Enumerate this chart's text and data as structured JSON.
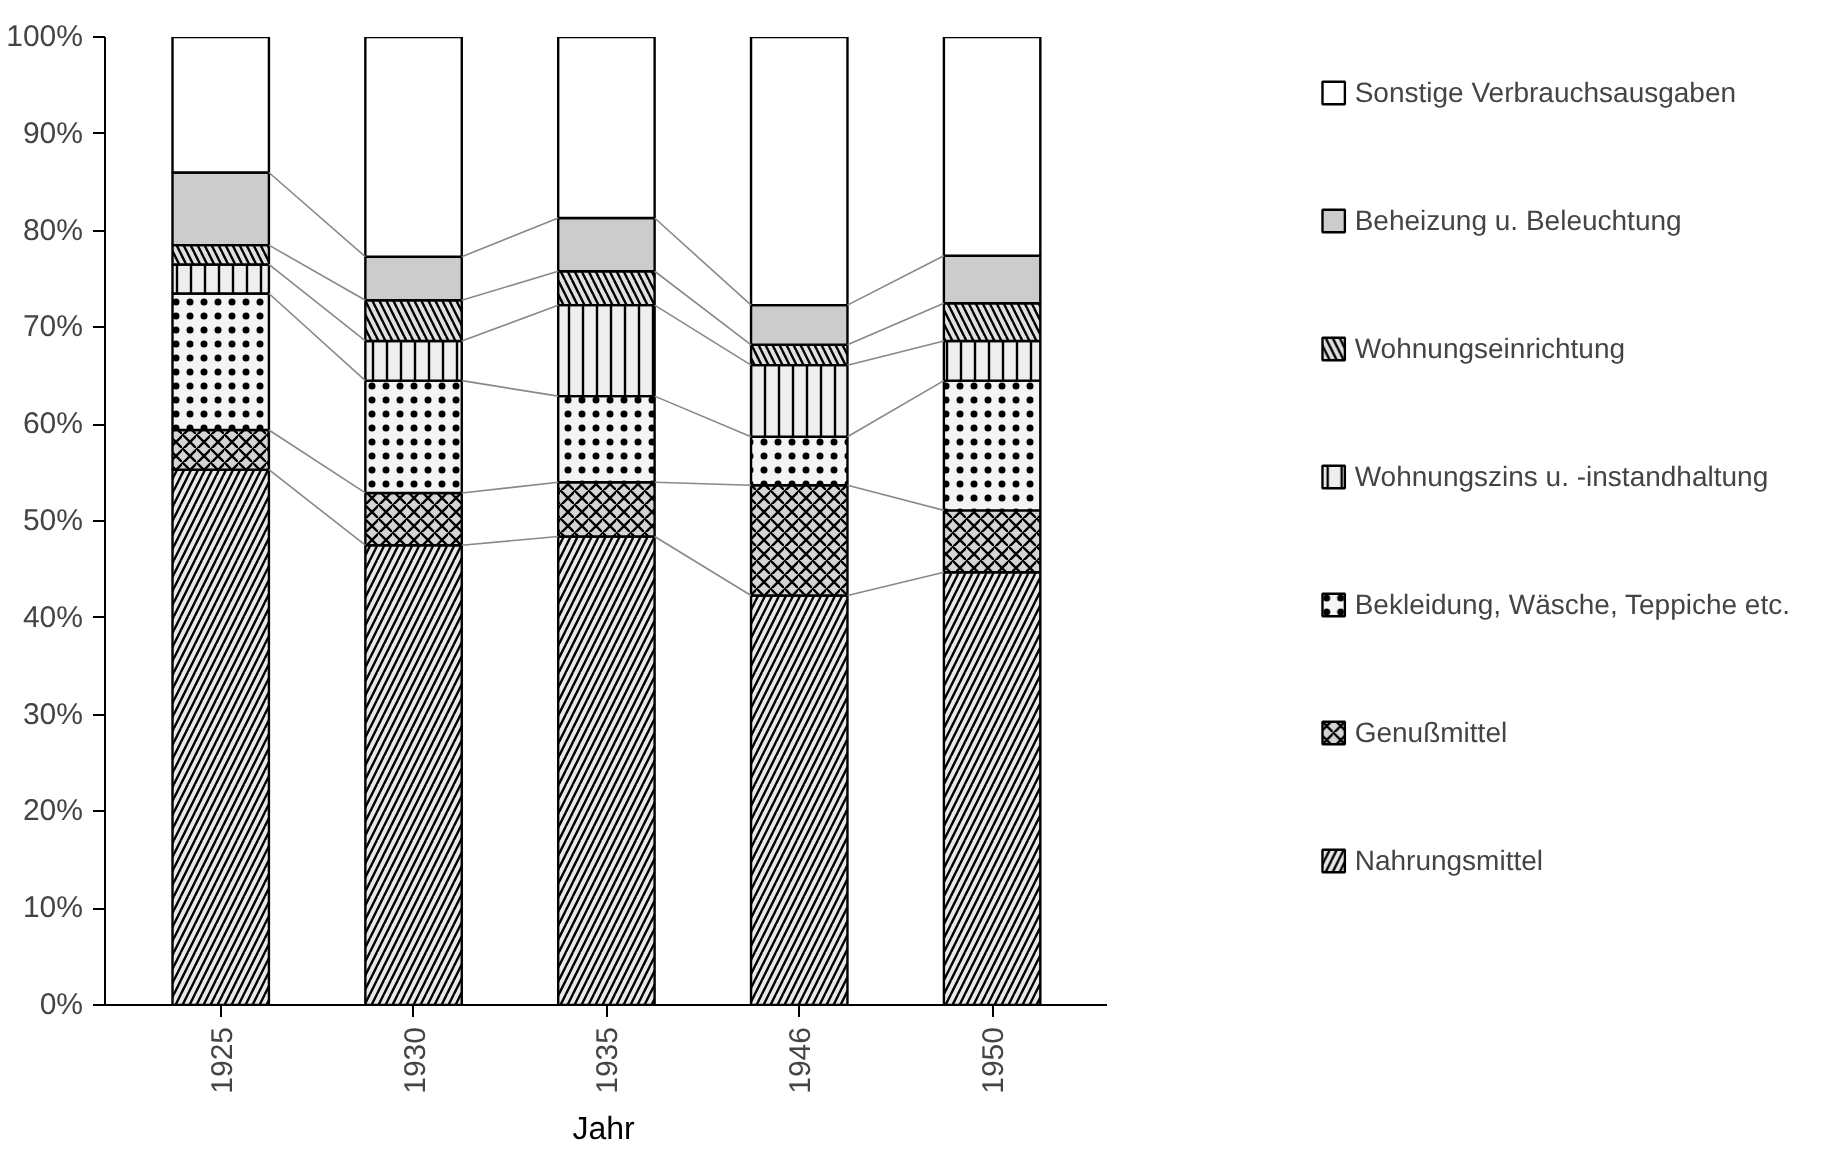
{
  "chart_data": {
    "type": "bar",
    "stacked": true,
    "xlabel": "Jahr",
    "categories": [
      "1925",
      "1930",
      "1935",
      "1946",
      "1950"
    ],
    "ylim": [
      0,
      100
    ],
    "yticks": [
      {
        "value": 0,
        "label": "0%"
      },
      {
        "value": 10,
        "label": "10%"
      },
      {
        "value": 20,
        "label": "20%"
      },
      {
        "value": 30,
        "label": "30%"
      },
      {
        "value": 40,
        "label": "40%"
      },
      {
        "value": 50,
        "label": "50%"
      },
      {
        "value": 60,
        "label": "60%"
      },
      {
        "value": 70,
        "label": "70%"
      },
      {
        "value": 80,
        "label": "80%"
      },
      {
        "value": 90,
        "label": "90%"
      },
      {
        "value": 100,
        "label": "100%"
      }
    ],
    "grid": false,
    "legend": "right",
    "series": [
      {
        "name": "Nahrungsmittel",
        "color": "#e8e8e8",
        "values": [
          55.3,
          47.5,
          48.4,
          42.3,
          44.7
        ]
      },
      {
        "name": "Genußmittel",
        "color": "#d4d4d4",
        "values": [
          4.1,
          5.4,
          5.6,
          11.4,
          6.4
        ]
      },
      {
        "name": "Bekleidung, Wäsche, Teppiche etc.",
        "color": "#f4f4f4",
        "values": [
          14.1,
          11.6,
          8.9,
          5.0,
          13.4
        ]
      },
      {
        "name": "Wohnungszins u. -instandhaltung",
        "color": "#eeeeee",
        "values": [
          3.0,
          4.1,
          9.4,
          7.4,
          4.1
        ]
      },
      {
        "name": "Wohnungseinrichtung",
        "color": "#e0e0e0",
        "values": [
          2.0,
          4.2,
          3.5,
          2.1,
          3.9
        ]
      },
      {
        "name": "Beheizung u. Beleuchtung",
        "color": "#cccccc",
        "values": [
          7.5,
          4.5,
          5.5,
          4.1,
          4.9
        ]
      },
      {
        "name": "Sonstige Verbrauchsausgaben",
        "color": "#ffffff",
        "values": [
          14.0,
          22.7,
          18.7,
          27.7,
          22.6
        ]
      }
    ]
  }
}
